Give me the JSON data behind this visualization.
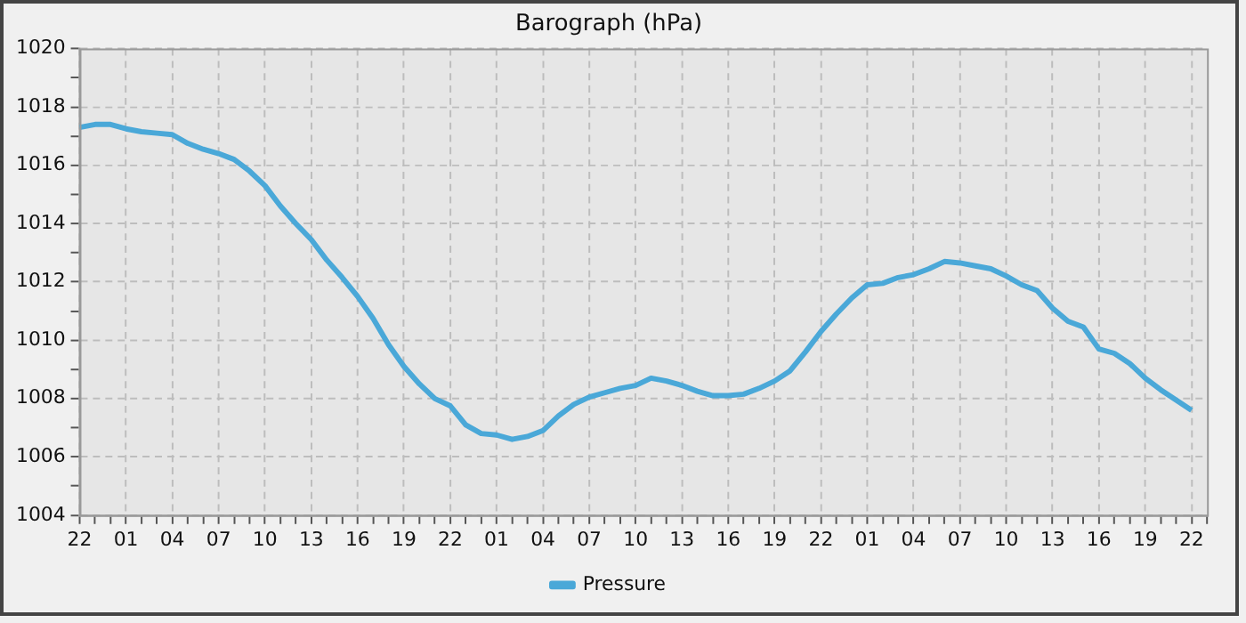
{
  "chart_data": {
    "type": "line",
    "title": "Barograph (hPa)",
    "categories": [
      "22",
      null,
      null,
      "01",
      null,
      null,
      "04",
      null,
      null,
      "07",
      null,
      null,
      "10",
      null,
      null,
      "13",
      null,
      null,
      "16",
      null,
      null,
      "19",
      null,
      null,
      "22",
      null,
      null,
      "01",
      null,
      null,
      "04",
      null,
      null,
      "07",
      null,
      null,
      "10",
      null,
      null,
      "13",
      null,
      null,
      "16",
      null,
      null,
      "19",
      null,
      null,
      "22",
      null,
      null,
      "01",
      null,
      null,
      "04",
      null,
      null,
      "07",
      null,
      null,
      "10",
      null,
      null,
      "13",
      null,
      null,
      "16",
      null,
      null,
      "19",
      null,
      null,
      "22",
      null
    ],
    "series": [
      {
        "name": "Pressure",
        "color": "#4aa8d8",
        "values": [
          1017.3,
          1017.4,
          1017.4,
          1017.25,
          1017.15,
          1017.1,
          1017.05,
          1016.75,
          1016.55,
          1016.4,
          1016.2,
          1015.8,
          1015.3,
          1014.6,
          1014.0,
          1013.45,
          1012.75,
          1012.15,
          1011.5,
          1010.75,
          1009.85,
          1009.1,
          1008.5,
          1008.0,
          1007.75,
          1007.1,
          1006.8,
          1006.75,
          1006.6,
          1006.7,
          1006.9,
          1007.4,
          1007.8,
          1008.05,
          1008.2,
          1008.35,
          1008.45,
          1008.7,
          1008.6,
          1008.45,
          1008.25,
          1008.1,
          1008.1,
          1008.15,
          1008.35,
          1008.6,
          1008.95,
          1009.6,
          1010.3,
          1010.9,
          1011.45,
          1011.9,
          1011.95,
          1012.15,
          1012.25,
          1012.45,
          1012.7,
          1012.65,
          1012.55,
          1012.45,
          1012.2,
          1011.9,
          1011.7,
          1011.1,
          1010.65,
          1010.45,
          1009.7,
          1009.55,
          1009.2,
          1008.7,
          1008.3,
          1007.95,
          1007.6,
          null
        ]
      }
    ],
    "ylim": [
      1004,
      1020
    ],
    "yticks": [
      1004,
      {
        "value": 1005,
        "label": null
      },
      1006,
      {
        "value": 1007,
        "label": null
      },
      1008,
      {
        "value": 1009,
        "label": null
      },
      1010,
      {
        "value": 1011,
        "label": null
      },
      1012,
      {
        "value": 1013,
        "label": null
      },
      1014,
      {
        "value": 1015,
        "label": null
      },
      1016,
      {
        "value": 1017,
        "label": null
      },
      1018,
      {
        "value": 1019,
        "label": null
      },
      1020
    ],
    "grid": true,
    "legend": "bottom",
    "marker": "none",
    "line_style": "solid"
  }
}
